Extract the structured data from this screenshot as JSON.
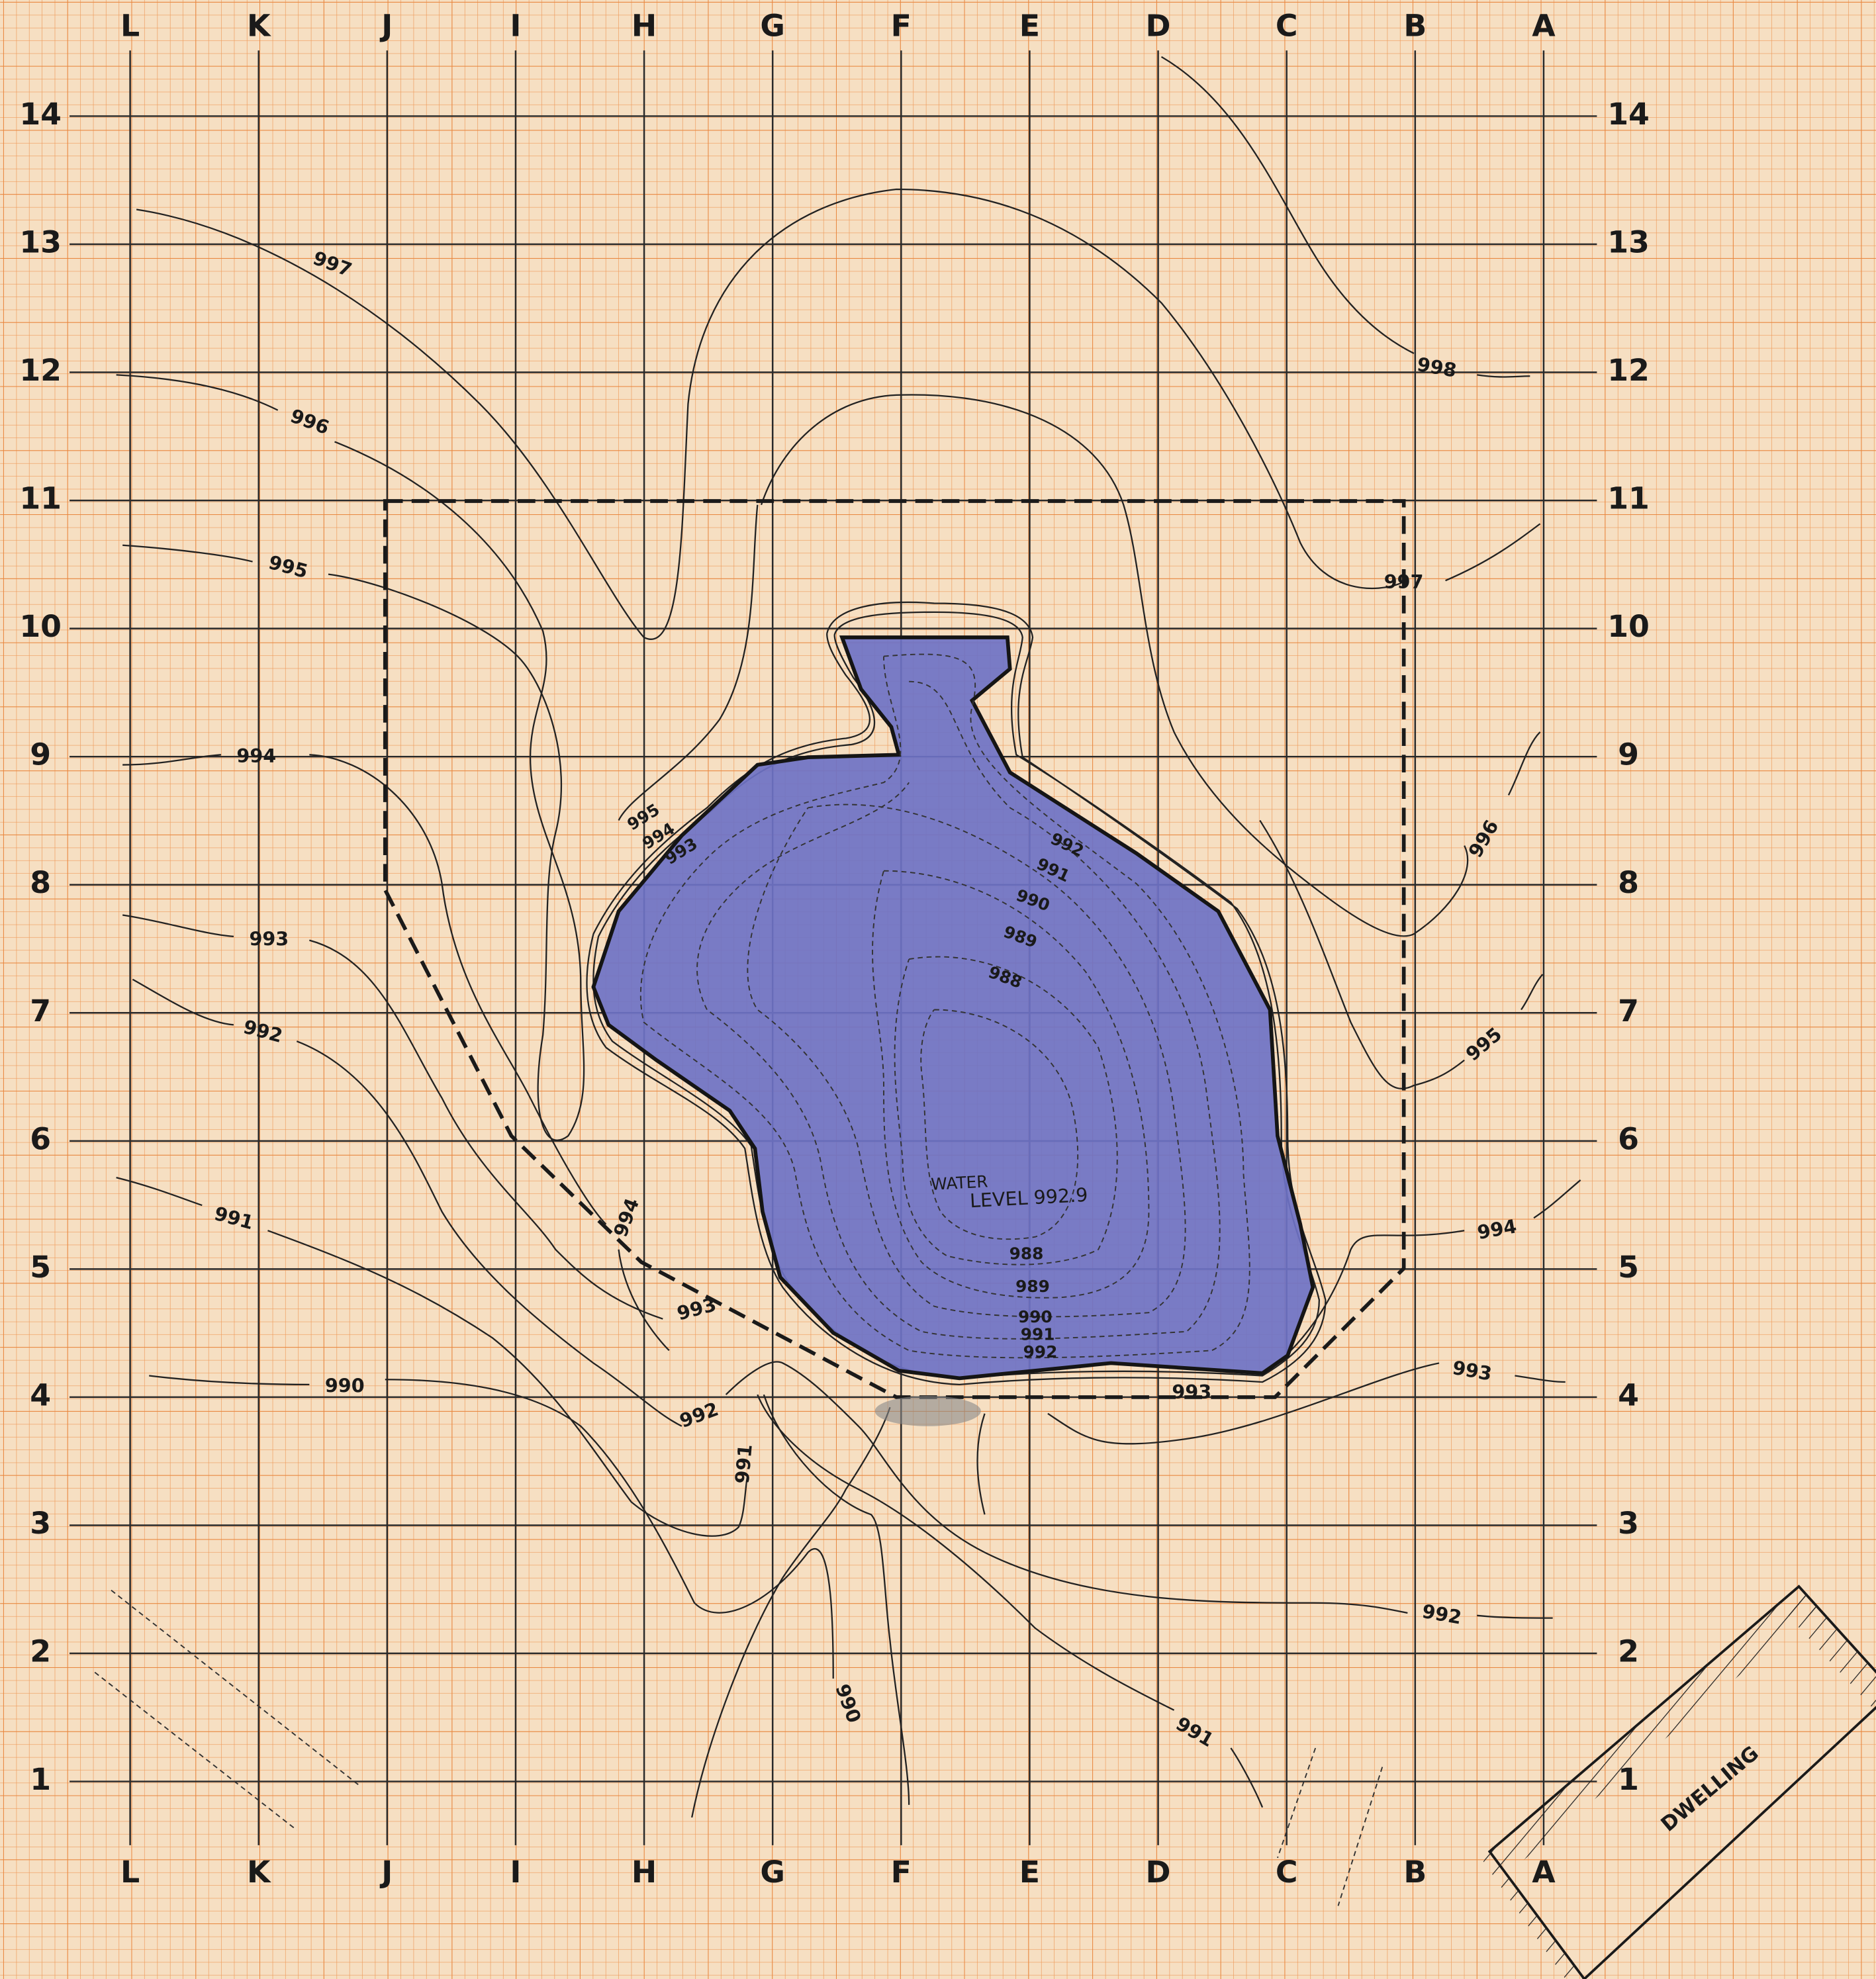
{
  "map": {
    "columns": [
      "L",
      "K",
      "J",
      "I",
      "H",
      "G",
      "F",
      "E",
      "D",
      "C",
      "B",
      "A"
    ],
    "rows": [
      14,
      13,
      12,
      11,
      10,
      9,
      8,
      7,
      6,
      5,
      4,
      3,
      2,
      1
    ],
    "contour_labels": [
      "997",
      "996",
      "995",
      "994",
      "993",
      "992",
      "991",
      "990",
      "998",
      "997",
      "996",
      "995",
      "994",
      "993",
      "992",
      "991",
      "990",
      "991",
      "992",
      "993",
      "994",
      "993",
      "995",
      "994",
      "993",
      "992",
      "991",
      "990",
      "989",
      "988",
      "988",
      "989",
      "990",
      "991",
      "992"
    ],
    "water_label": [
      "WATER",
      "LEVEL 992.9"
    ],
    "dwelling": "DWELLING"
  }
}
